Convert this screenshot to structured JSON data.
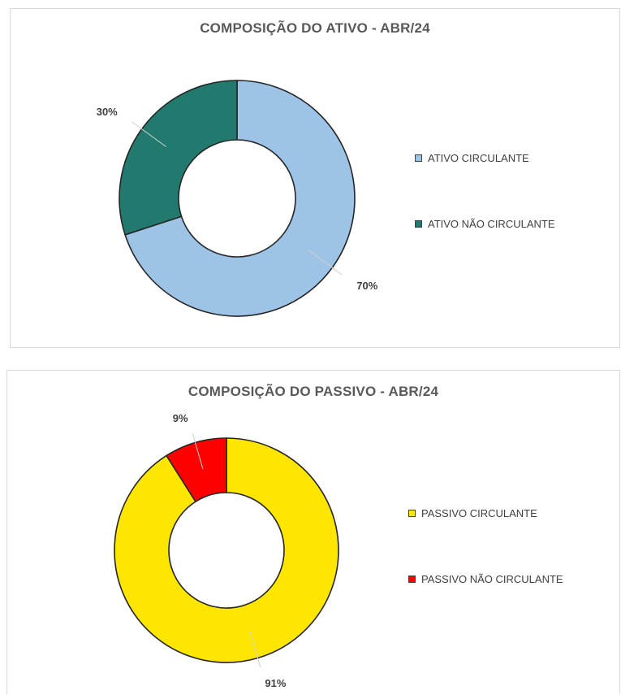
{
  "chart_data": [
    {
      "type": "pie",
      "title": "COMPOSIÇÃO DO ATIVO - ABR/24",
      "categories": [
        "ATIVO CIRCULANTE",
        "ATIVO NÃO CIRCULANTE"
      ],
      "values": [
        70,
        30
      ],
      "labels": [
        "70%",
        "30%"
      ],
      "colors": [
        "#9dc3e6",
        "#217a6d"
      ],
      "legend": "right"
    },
    {
      "type": "pie",
      "title": "COMPOSIÇÃO DO PASSIVO - ABR/24",
      "categories": [
        "PASSIVO CIRCULANTE",
        "PASSIVO NÃO CIRCULANTE"
      ],
      "values": [
        91,
        9
      ],
      "labels": [
        "91%",
        "9%"
      ],
      "colors": [
        "#ffe600",
        "#ff0000"
      ],
      "legend": "right"
    }
  ]
}
